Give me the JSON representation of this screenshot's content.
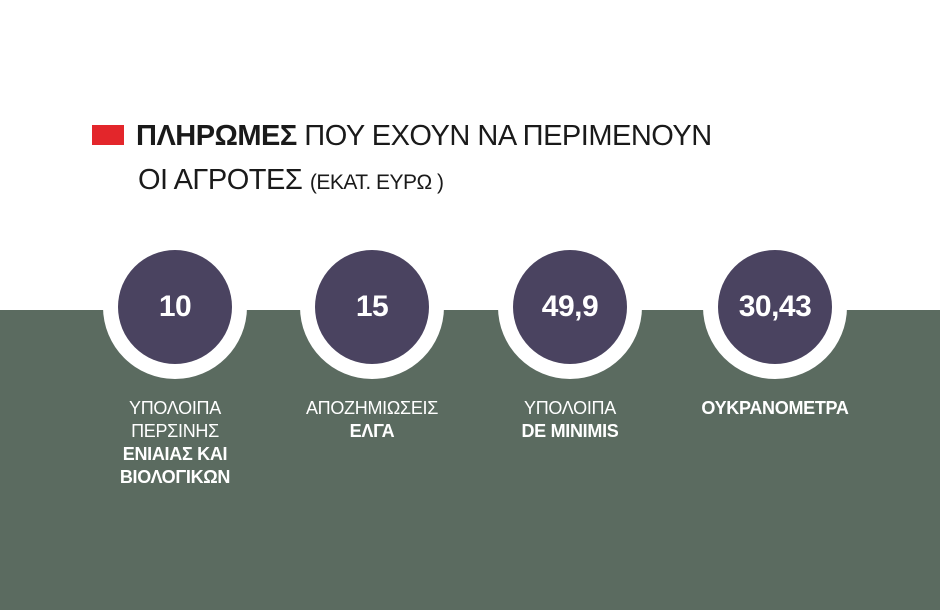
{
  "title": {
    "bold": "ΠΛΗΡΩΜΕΣ",
    "rest_line1": "ΠΟΥ ΕΧΟΥΝ ΝΑ ΠΕΡΙΜΕΝΟΥΝ",
    "line2": "ΟΙ ΑΓΡΟΤΕΣ",
    "unit": "(ΕΚΑΤ. ΕΥΡΩ )"
  },
  "colors": {
    "accent": "#e3262b",
    "band": "#5b6b60",
    "circle": "#4a4360"
  },
  "items": [
    {
      "value": "10",
      "label_light": [
        "ΥΠΟΛΟΙΠΑ",
        "ΠΕΡΣΙΝΗΣ"
      ],
      "label_bold": [
        "ΕΝΙΑΙΑΣ ΚΑΙ",
        "ΒΙΟΛΟΓΙΚΩΝ"
      ]
    },
    {
      "value": "15",
      "label_light": [
        "ΑΠΟΖΗΜΙΩΣΕΙΣ"
      ],
      "label_bold": [
        "ΕΛΓΑ"
      ]
    },
    {
      "value": "49,9",
      "label_light": [
        "ΥΠΟΛΟΙΠΑ"
      ],
      "label_bold": [
        "DE MINIMIS"
      ]
    },
    {
      "value": "30,43",
      "label_light": [],
      "label_bold": [
        "ΟΥΚΡΑΝΟΜΕΤΡΑ"
      ]
    }
  ]
}
